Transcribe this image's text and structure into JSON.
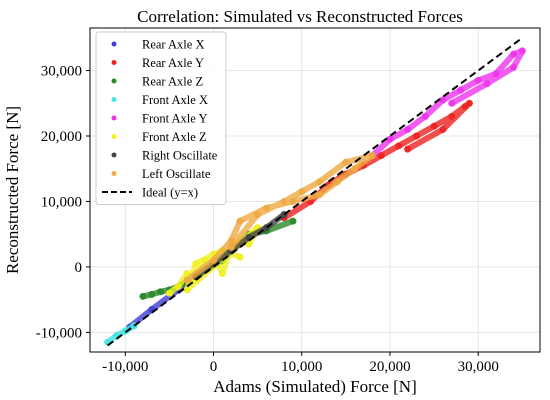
{
  "chart_data": {
    "type": "scatter",
    "title": "Correlation: Simulated vs Reconstructed Forces",
    "xlabel": "Adams (Simulated) Force [N]",
    "ylabel": "Reconstructed Force [N]",
    "xlim": [
      -14000,
      37000
    ],
    "ylim": [
      -13000,
      36500
    ],
    "xticks": [
      -10000,
      0,
      10000,
      20000,
      30000
    ],
    "yticks": [
      -10000,
      0,
      10000,
      20000,
      30000
    ],
    "xtick_labels": [
      "-10,000",
      "0",
      "10,000",
      "20,000",
      "30,000"
    ],
    "ytick_labels": [
      "-10,000",
      "0",
      "10,000",
      "20,000",
      "30,000"
    ],
    "grid": true,
    "legend_position": "upper-left",
    "series": [
      {
        "name": "Rear Axle X",
        "color": "#3f3fd8",
        "points": [
          [
            -9500,
            -9200
          ],
          [
            -7000,
            -6500
          ],
          [
            -4000,
            -3500
          ],
          [
            -1500,
            -800
          ]
        ]
      },
      {
        "name": "Rear Axle Y",
        "color": "#ee2222",
        "points": [
          [
            8000,
            7500
          ],
          [
            11000,
            10000
          ],
          [
            13000,
            12500
          ],
          [
            15000,
            14200
          ],
          [
            17000,
            15500
          ],
          [
            19000,
            17000
          ],
          [
            21000,
            18500
          ],
          [
            23000,
            20000
          ],
          [
            25000,
            21500
          ],
          [
            27000,
            23000
          ],
          [
            28500,
            24500
          ],
          [
            29000,
            25000
          ],
          [
            26000,
            21000
          ],
          [
            22000,
            18000
          ]
        ]
      },
      {
        "name": "Rear Axle Z",
        "color": "#2a8a2a",
        "points": [
          [
            -8000,
            -4500
          ],
          [
            -7000,
            -4200
          ],
          [
            -6000,
            -3800
          ],
          [
            -5000,
            -3500
          ],
          [
            -4000,
            -3000
          ],
          [
            -3000,
            -2200
          ],
          [
            -2000,
            -1500
          ],
          [
            1000,
            1000
          ],
          [
            4000,
            5000
          ],
          [
            6000,
            5500
          ],
          [
            9000,
            7000
          ]
        ]
      },
      {
        "name": "Front Axle X",
        "color": "#44e4e4",
        "points": [
          [
            -12000,
            -11500
          ],
          [
            -11000,
            -10500
          ],
          [
            -10000,
            -9800
          ],
          [
            -9000,
            -9000
          ]
        ]
      },
      {
        "name": "Front Axle Y",
        "color": "#ee33ee",
        "points": [
          [
            18000,
            17000
          ],
          [
            20000,
            19500
          ],
          [
            22000,
            21000
          ],
          [
            24000,
            23000
          ],
          [
            26000,
            25500
          ],
          [
            28000,
            27000
          ],
          [
            30000,
            28500
          ],
          [
            32000,
            29500
          ],
          [
            34000,
            32500
          ],
          [
            35000,
            33000
          ],
          [
            34000,
            30500
          ],
          [
            31000,
            28000
          ],
          [
            27000,
            25000
          ]
        ]
      },
      {
        "name": "Front Axle Z",
        "color": "#f0f020",
        "points": [
          [
            -5000,
            -4000
          ],
          [
            -4000,
            -3000
          ],
          [
            -3000,
            -1000
          ],
          [
            -2000,
            -2000
          ],
          [
            -1000,
            1000
          ],
          [
            0,
            2000
          ],
          [
            1000,
            -1000
          ],
          [
            2000,
            3000
          ],
          [
            3000,
            4000
          ],
          [
            4000,
            3500
          ],
          [
            5000,
            6000
          ],
          [
            -3000,
            -3500
          ],
          [
            -2000,
            500
          ],
          [
            1000,
            2500
          ],
          [
            3000,
            1500
          ]
        ]
      },
      {
        "name": "Right Oscillate",
        "color": "#444444",
        "points": [
          [
            -2000,
            -1500
          ],
          [
            0,
            500
          ],
          [
            2000,
            2500
          ],
          [
            4000,
            4500
          ],
          [
            6000,
            6000
          ],
          [
            8000,
            8000
          ]
        ]
      },
      {
        "name": "Left Oscillate",
        "color": "#eeaa44",
        "points": [
          [
            -3000,
            -2000
          ],
          [
            0,
            1000
          ],
          [
            2000,
            4000
          ],
          [
            3000,
            7000
          ],
          [
            6000,
            9000
          ],
          [
            9000,
            10000
          ],
          [
            12000,
            11000
          ],
          [
            14000,
            13000
          ],
          [
            16000,
            15000
          ],
          [
            18000,
            17000
          ],
          [
            15000,
            16000
          ],
          [
            12000,
            13000
          ],
          [
            10000,
            11500
          ],
          [
            8000,
            10000
          ],
          [
            5000,
            8000
          ],
          [
            2000,
            3000
          ]
        ]
      }
    ],
    "reference_line": {
      "name": "Ideal (y=x)",
      "color": "#000000",
      "style": "dashed",
      "x": [
        -12000,
        35000
      ],
      "y": [
        -12000,
        35000
      ]
    }
  }
}
